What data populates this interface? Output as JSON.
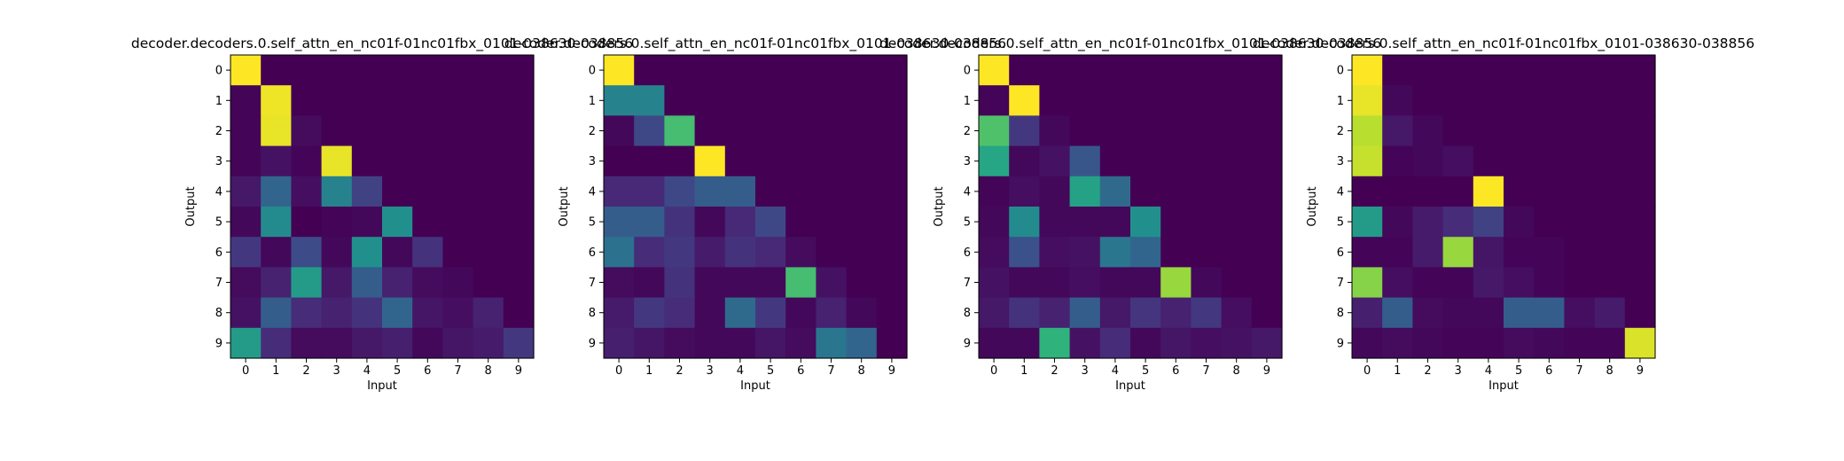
{
  "chart_data": [
    {
      "type": "heatmap",
      "title": "decoder.decoders.0.self_attn_en_nc01f-01nc01fbx_0101-038630-038856",
      "xlabel": "Input",
      "ylabel": "Output",
      "x_ticks": [
        "0",
        "1",
        "2",
        "3",
        "4",
        "5",
        "6",
        "7",
        "8",
        "9"
      ],
      "y_ticks": [
        "0",
        "1",
        "2",
        "3",
        "4",
        "5",
        "6",
        "7",
        "8",
        "9"
      ],
      "colormap": "viridis",
      "value_range": [
        0,
        1
      ],
      "values": [
        [
          1.0,
          0.0,
          0.0,
          0.0,
          0.0,
          0.0,
          0.0,
          0.0,
          0.0,
          0.0
        ],
        [
          0.01,
          0.98,
          0.0,
          0.0,
          0.0,
          0.0,
          0.0,
          0.0,
          0.0,
          0.0
        ],
        [
          0.01,
          0.97,
          0.03,
          0.0,
          0.0,
          0.0,
          0.0,
          0.0,
          0.0,
          0.0
        ],
        [
          0.01,
          0.05,
          0.01,
          0.97,
          0.0,
          0.0,
          0.0,
          0.0,
          0.0,
          0.0
        ],
        [
          0.07,
          0.33,
          0.04,
          0.45,
          0.2,
          0.0,
          0.0,
          0.0,
          0.0,
          0.0
        ],
        [
          0.02,
          0.48,
          0.0,
          0.01,
          0.02,
          0.5,
          0.0,
          0.0,
          0.0,
          0.0
        ],
        [
          0.17,
          0.02,
          0.23,
          0.02,
          0.5,
          0.02,
          0.15,
          0.0,
          0.0,
          0.0
        ],
        [
          0.03,
          0.1,
          0.55,
          0.07,
          0.3,
          0.1,
          0.03,
          0.02,
          0.0,
          0.0
        ],
        [
          0.05,
          0.3,
          0.13,
          0.1,
          0.15,
          0.33,
          0.06,
          0.04,
          0.1,
          0.0
        ],
        [
          0.55,
          0.13,
          0.03,
          0.03,
          0.07,
          0.09,
          0.02,
          0.06,
          0.08,
          0.17
        ]
      ]
    },
    {
      "type": "heatmap",
      "title": "decoder.decoders.0.self_attn_en_nc01f-01nc01fbx_0101-038630-038856",
      "xlabel": "Input",
      "ylabel": "Output",
      "x_ticks": [
        "0",
        "1",
        "2",
        "3",
        "4",
        "5",
        "6",
        "7",
        "8",
        "9"
      ],
      "y_ticks": [
        "0",
        "1",
        "2",
        "3",
        "4",
        "5",
        "6",
        "7",
        "8",
        "9"
      ],
      "colormap": "viridis",
      "value_range": [
        0,
        1
      ],
      "values": [
        [
          1.0,
          0.0,
          0.0,
          0.0,
          0.0,
          0.0,
          0.0,
          0.0,
          0.0,
          0.0
        ],
        [
          0.45,
          0.45,
          0.0,
          0.0,
          0.0,
          0.0,
          0.0,
          0.0,
          0.0,
          0.0
        ],
        [
          0.02,
          0.22,
          0.7,
          0.0,
          0.0,
          0.0,
          0.0,
          0.0,
          0.0,
          0.0
        ],
        [
          0.0,
          0.0,
          0.0,
          1.0,
          0.0,
          0.0,
          0.0,
          0.0,
          0.0,
          0.0
        ],
        [
          0.12,
          0.12,
          0.22,
          0.3,
          0.3,
          0.0,
          0.0,
          0.0,
          0.0,
          0.0
        ],
        [
          0.3,
          0.3,
          0.15,
          0.02,
          0.12,
          0.22,
          0.0,
          0.0,
          0.0,
          0.0
        ],
        [
          0.38,
          0.13,
          0.17,
          0.08,
          0.15,
          0.12,
          0.03,
          0.0,
          0.0,
          0.0
        ],
        [
          0.03,
          0.02,
          0.15,
          0.02,
          0.02,
          0.02,
          0.7,
          0.05,
          0.0,
          0.0
        ],
        [
          0.08,
          0.17,
          0.13,
          0.02,
          0.35,
          0.17,
          0.02,
          0.1,
          0.02,
          0.0
        ],
        [
          0.09,
          0.06,
          0.03,
          0.02,
          0.02,
          0.06,
          0.03,
          0.4,
          0.33,
          0.0
        ]
      ]
    },
    {
      "type": "heatmap",
      "title": "decoder.decoders.0.self_attn_en_nc01f-01nc01fbx_0101-038630-038856",
      "xlabel": "Input",
      "ylabel": "Output",
      "x_ticks": [
        "0",
        "1",
        "2",
        "3",
        "4",
        "5",
        "6",
        "7",
        "8",
        "9"
      ],
      "y_ticks": [
        "0",
        "1",
        "2",
        "3",
        "4",
        "5",
        "6",
        "7",
        "8",
        "9"
      ],
      "colormap": "viridis",
      "value_range": [
        0,
        1
      ],
      "values": [
        [
          1.0,
          0.0,
          0.0,
          0.0,
          0.0,
          0.0,
          0.0,
          0.0,
          0.0,
          0.0
        ],
        [
          0.01,
          1.0,
          0.0,
          0.0,
          0.0,
          0.0,
          0.0,
          0.0,
          0.0,
          0.0
        ],
        [
          0.72,
          0.17,
          0.02,
          0.0,
          0.0,
          0.0,
          0.0,
          0.0,
          0.0,
          0.0
        ],
        [
          0.6,
          0.02,
          0.05,
          0.27,
          0.0,
          0.0,
          0.0,
          0.0,
          0.0,
          0.0
        ],
        [
          0.01,
          0.04,
          0.02,
          0.58,
          0.35,
          0.0,
          0.0,
          0.0,
          0.0,
          0.0
        ],
        [
          0.02,
          0.48,
          0.02,
          0.02,
          0.02,
          0.5,
          0.0,
          0.0,
          0.0,
          0.0
        ],
        [
          0.03,
          0.25,
          0.04,
          0.05,
          0.4,
          0.33,
          0.0,
          0.0,
          0.0,
          0.0
        ],
        [
          0.05,
          0.02,
          0.02,
          0.04,
          0.02,
          0.02,
          0.85,
          0.02,
          0.0,
          0.0
        ],
        [
          0.07,
          0.15,
          0.1,
          0.3,
          0.07,
          0.16,
          0.1,
          0.17,
          0.04,
          0.0
        ],
        [
          0.02,
          0.02,
          0.65,
          0.05,
          0.13,
          0.02,
          0.06,
          0.04,
          0.05,
          0.07
        ]
      ]
    },
    {
      "type": "heatmap",
      "title": "decoder.decoders.0.self_attn_en_nc01f-01nc01fbx_0101-038630-038856",
      "xlabel": "Input",
      "ylabel": "Output",
      "x_ticks": [
        "0",
        "1",
        "2",
        "3",
        "4",
        "5",
        "6",
        "7",
        "8",
        "9"
      ],
      "y_ticks": [
        "0",
        "1",
        "2",
        "3",
        "4",
        "5",
        "6",
        "7",
        "8",
        "9"
      ],
      "colormap": "viridis",
      "value_range": [
        0,
        1
      ],
      "values": [
        [
          1.0,
          0.0,
          0.0,
          0.0,
          0.0,
          0.0,
          0.0,
          0.0,
          0.0,
          0.0
        ],
        [
          0.97,
          0.02,
          0.0,
          0.0,
          0.0,
          0.0,
          0.0,
          0.0,
          0.0,
          0.0
        ],
        [
          0.9,
          0.07,
          0.02,
          0.0,
          0.0,
          0.0,
          0.0,
          0.0,
          0.0,
          0.0
        ],
        [
          0.92,
          0.01,
          0.02,
          0.04,
          0.0,
          0.0,
          0.0,
          0.0,
          0.0,
          0.0
        ],
        [
          0.0,
          0.0,
          0.0,
          0.0,
          1.0,
          0.0,
          0.0,
          0.0,
          0.0,
          0.0
        ],
        [
          0.55,
          0.02,
          0.08,
          0.13,
          0.2,
          0.02,
          0.0,
          0.0,
          0.0,
          0.0
        ],
        [
          0.01,
          0.01,
          0.08,
          0.85,
          0.06,
          0.01,
          0.01,
          0.0,
          0.0,
          0.0
        ],
        [
          0.82,
          0.04,
          0.01,
          0.01,
          0.07,
          0.04,
          0.01,
          0.0,
          0.0,
          0.0
        ],
        [
          0.09,
          0.3,
          0.03,
          0.02,
          0.02,
          0.3,
          0.3,
          0.04,
          0.08,
          0.0
        ],
        [
          0.02,
          0.03,
          0.02,
          0.01,
          0.01,
          0.03,
          0.02,
          0.01,
          0.01,
          0.95
        ]
      ]
    }
  ]
}
